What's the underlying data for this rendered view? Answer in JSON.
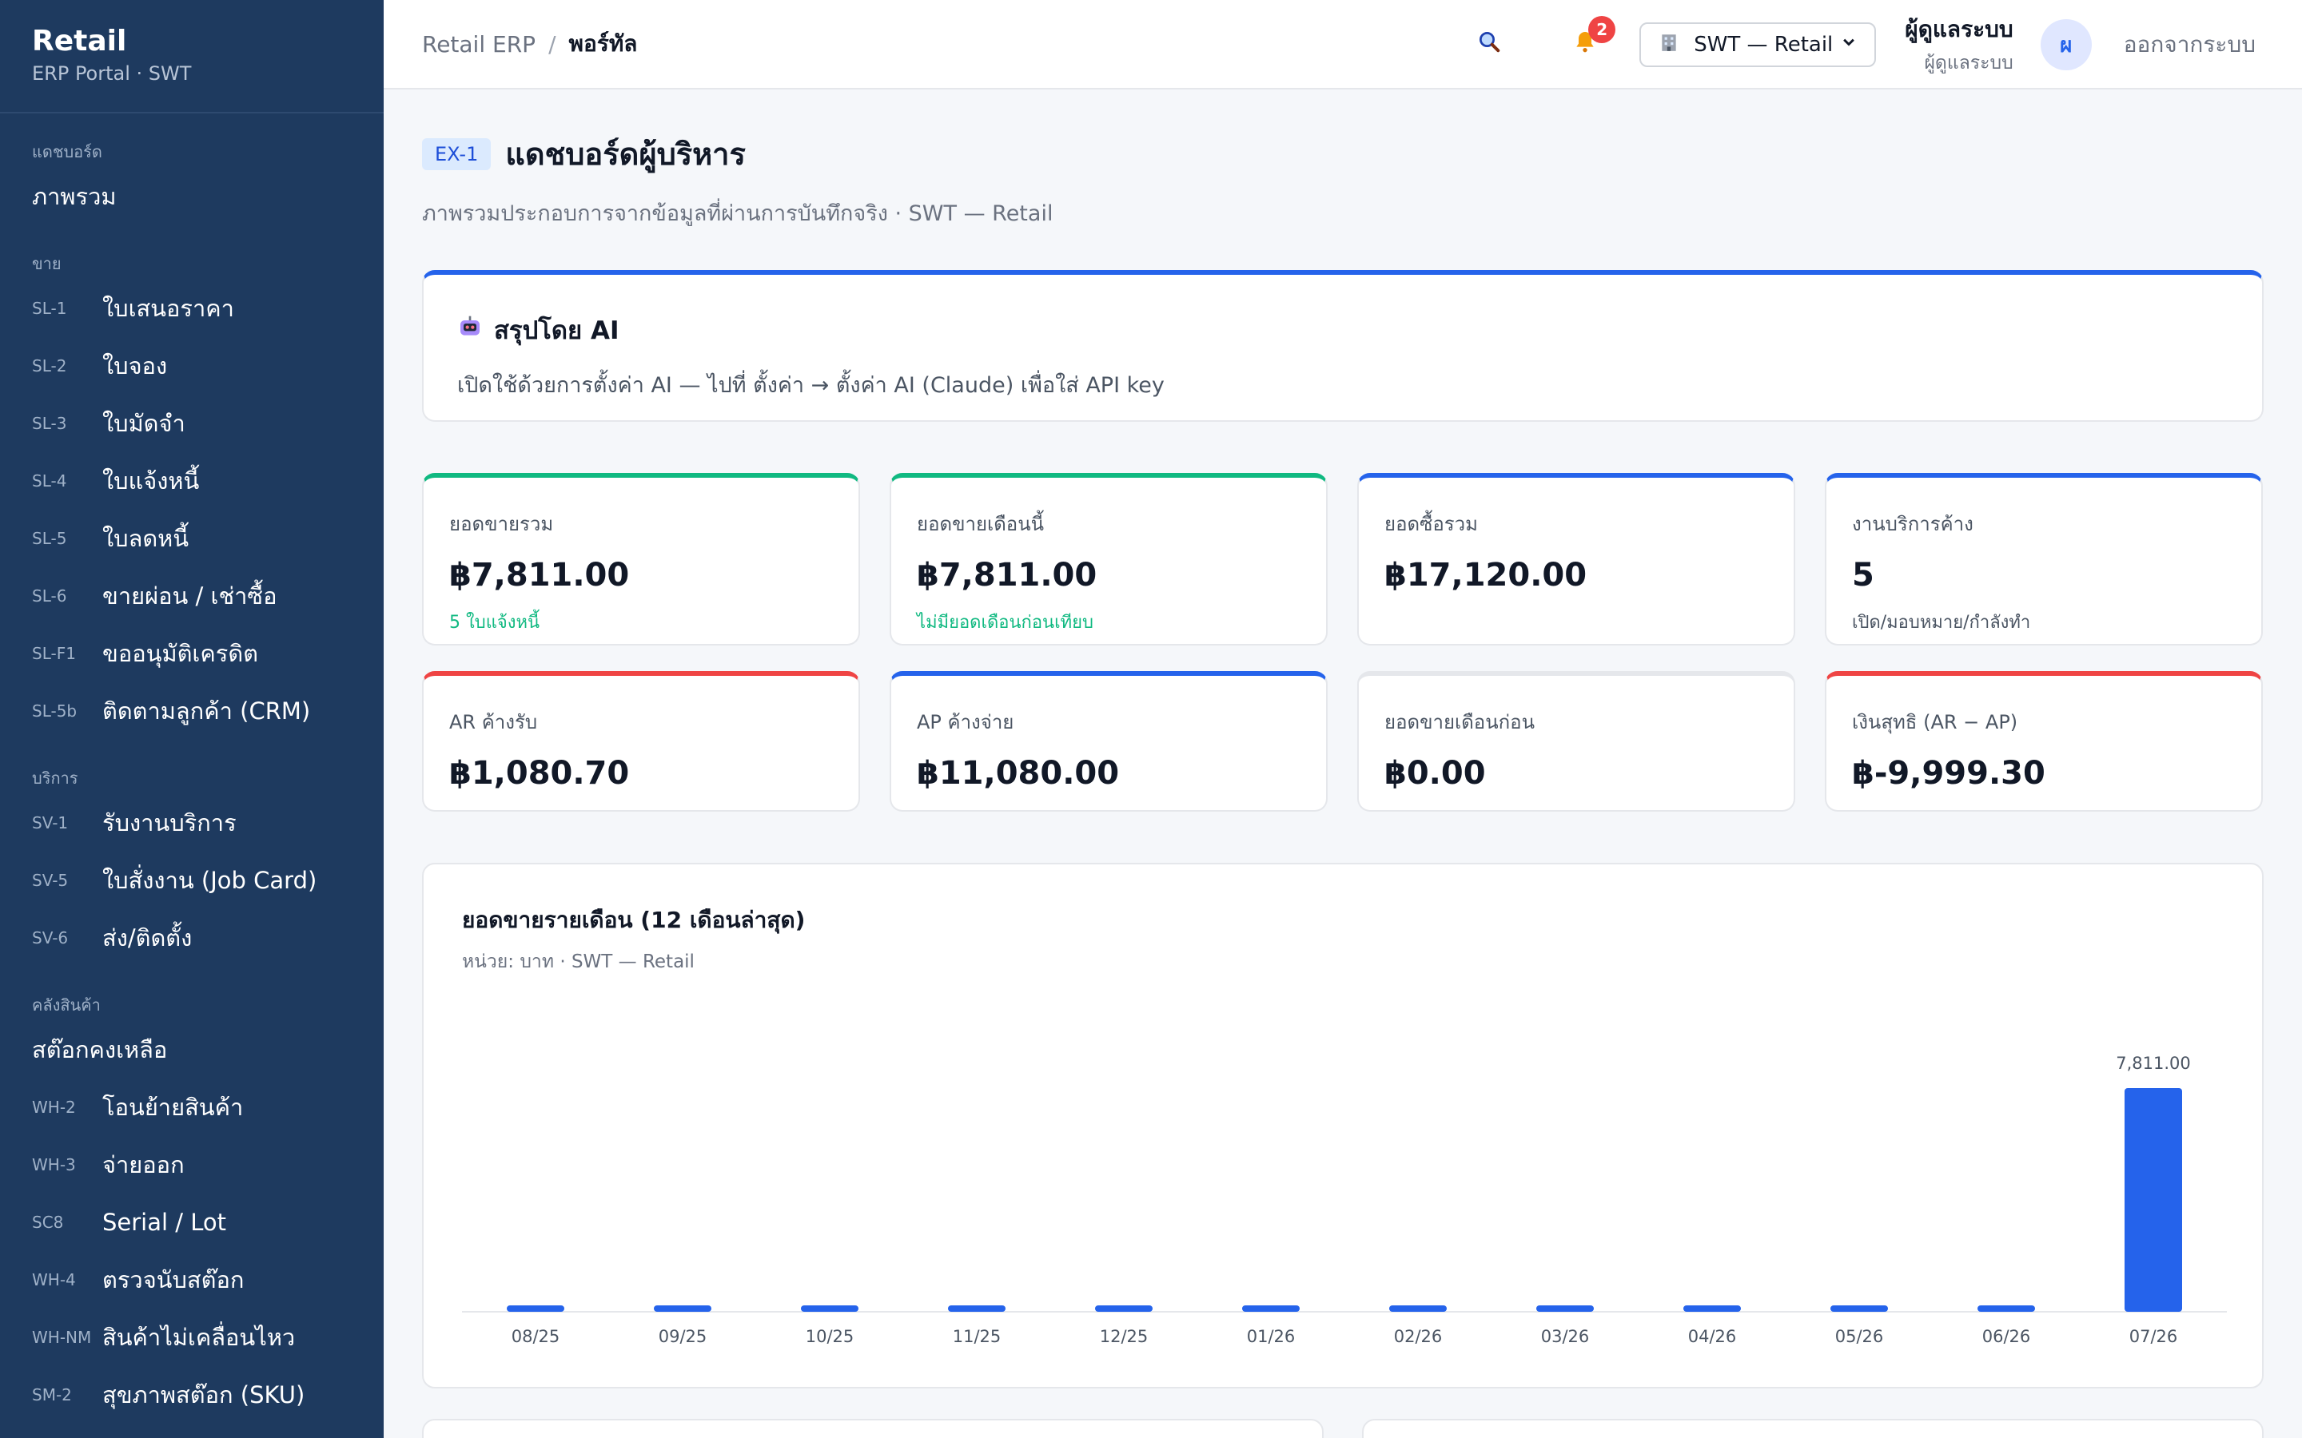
{
  "sidebar": {
    "brand_title": "Retail",
    "brand_sub": "ERP Portal · SWT",
    "sections": [
      {
        "label": "แดชบอร์ด",
        "items": [
          {
            "code": "",
            "label": "ภาพรวม"
          }
        ]
      },
      {
        "label": "ขาย",
        "items": [
          {
            "code": "SL-1",
            "label": "ใบเสนอราคา"
          },
          {
            "code": "SL-2",
            "label": "ใบจอง"
          },
          {
            "code": "SL-3",
            "label": "ใบมัดจำ"
          },
          {
            "code": "SL-4",
            "label": "ใบแจ้งหนี้"
          },
          {
            "code": "SL-5",
            "label": "ใบลดหนี้"
          },
          {
            "code": "SL-6",
            "label": "ขายผ่อน / เช่าซื้อ"
          },
          {
            "code": "SL-F1",
            "label": "ขออนุมัติเครดิต"
          },
          {
            "code": "SL-5b",
            "label": "ติดตามลูกค้า (CRM)"
          }
        ]
      },
      {
        "label": "บริการ",
        "items": [
          {
            "code": "SV-1",
            "label": "รับงานบริการ"
          },
          {
            "code": "SV-5",
            "label": "ใบสั่งงาน (Job Card)"
          },
          {
            "code": "SV-6",
            "label": "ส่ง/ติดตั้ง"
          }
        ]
      },
      {
        "label": "คลังสินค้า",
        "items": [
          {
            "code": "",
            "label": "สต๊อกคงเหลือ"
          },
          {
            "code": "WH-2",
            "label": "โอนย้ายสินค้า"
          },
          {
            "code": "WH-3",
            "label": "จ่ายออก"
          },
          {
            "code": "SC8",
            "label": "Serial / Lot"
          },
          {
            "code": "WH-4",
            "label": "ตรวจนับสต๊อก"
          },
          {
            "code": "WH-NM",
            "label": "สินค้าไม่เคลื่อนไหว"
          },
          {
            "code": "SM-2",
            "label": "สุขภาพสต๊อก (SKU)"
          }
        ]
      }
    ]
  },
  "topbar": {
    "crumb_root": "Retail ERP",
    "crumb_sep": "/",
    "crumb_current": "พอร์ทัล",
    "notif_count": "2",
    "company": "SWT — Retail",
    "user_name": "ผู้ดูแลระบบ",
    "user_role": "ผู้ดูแลระบบ",
    "avatar_initial": "ผ",
    "logout": "ออกจากระบบ",
    "icons": {
      "search": "search-icon",
      "bell": "bell-icon",
      "building": "building-icon",
      "chevron": "chevron-down-icon"
    }
  },
  "page": {
    "code": "EX-1",
    "title": "แดชบอร์ดผู้บริหาร",
    "subtitle": "ภาพรวมประกอบการจากข้อมูลที่ผ่านการบันทึกจริง · SWT — Retail"
  },
  "ai": {
    "title": "สรุปโดย AI",
    "desc": "เปิดใช้ด้วยการตั้งค่า AI — ไปที่ ตั้งค่า → ตั้งค่า AI (Claude) เพื่อใส่ API key"
  },
  "kpis": [
    {
      "label": "ยอดขายรวม",
      "value": "฿7,811.00",
      "note": "5 ใบแจ้งหนี้",
      "accent": "#10b981",
      "note_color": "green"
    },
    {
      "label": "ยอดขายเดือนนี้",
      "value": "฿7,811.00",
      "note": "ไม่มียอดเดือนก่อนเทียบ",
      "accent": "#10b981",
      "note_color": "green"
    },
    {
      "label": "ยอดซื้อรวม",
      "value": "฿17,120.00",
      "note": "",
      "accent": "#2563eb",
      "note_color": ""
    },
    {
      "label": "งานบริการค้าง",
      "value": "5",
      "note": "เปิด/มอบหมาย/กำลังทำ",
      "accent": "#2563eb",
      "note_color": ""
    },
    {
      "label": "AR ค้างรับ",
      "value": "฿1,080.70",
      "note": "",
      "accent": "#ef4444",
      "note_color": ""
    },
    {
      "label": "AP ค้างจ่าย",
      "value": "฿11,080.00",
      "note": "",
      "accent": "#2563eb",
      "note_color": ""
    },
    {
      "label": "ยอดขายเดือนก่อน",
      "value": "฿0.00",
      "note": "",
      "accent": "#e5e7eb",
      "note_color": ""
    },
    {
      "label": "เงินสุทธิ (AR − AP)",
      "value": "฿-9,999.30",
      "note": "",
      "accent": "#ef4444",
      "note_color": ""
    }
  ],
  "chart": {
    "title": "ยอดขายรายเดือน (12 เดือนล่าสุด)",
    "subtitle": "หน่วย: บาท · SWT — Retail"
  },
  "chart_data": {
    "type": "bar",
    "categories": [
      "08/25",
      "09/25",
      "10/25",
      "11/25",
      "12/25",
      "01/26",
      "02/26",
      "03/26",
      "04/26",
      "05/26",
      "06/26",
      "07/26"
    ],
    "values": [
      0,
      0,
      0,
      0,
      0,
      0,
      0,
      0,
      0,
      0,
      0,
      7811
    ],
    "data_labels": [
      "",
      "",
      "",
      "",
      "",
      "",
      "",
      "",
      "",
      "",
      "",
      "7,811.00"
    ],
    "ylim": [
      0,
      7811
    ],
    "bar_color": "#2563eb",
    "grid": false,
    "xlabel": "",
    "ylabel": ""
  }
}
